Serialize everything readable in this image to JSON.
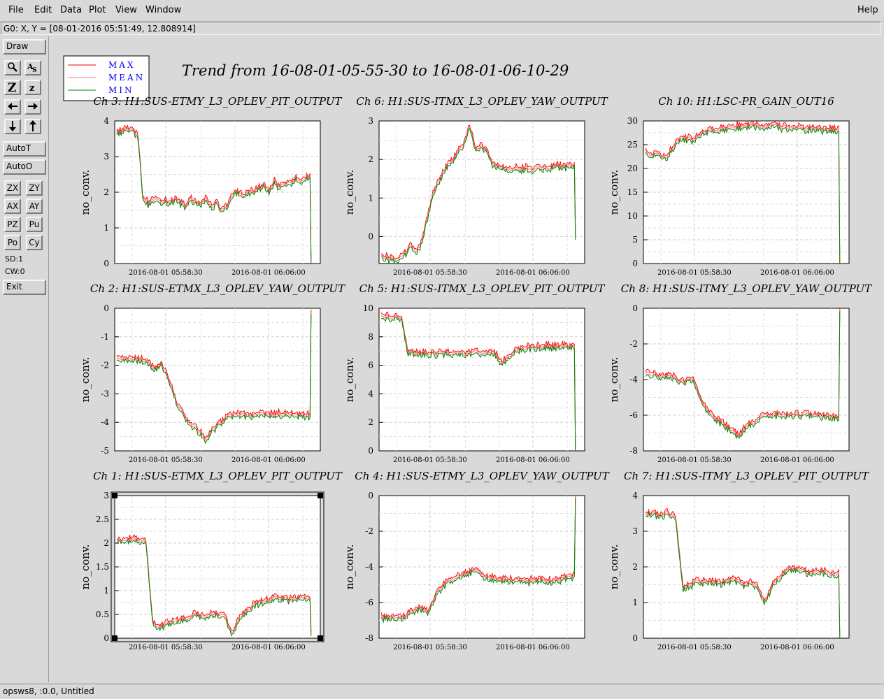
{
  "menu": {
    "file": "File",
    "edit": "Edit",
    "data": "Data",
    "plot": "Plot",
    "view": "View",
    "window": "Window",
    "help": "Help"
  },
  "coord_readout": "G0: X, Y = [08-01-2016 05:51:49, 12.808914]",
  "toolbar": {
    "draw": "Draw",
    "autot": "AutoT",
    "autoo": "AutoO",
    "zx": "ZX",
    "zy": "ZY",
    "ax": "AX",
    "ay": "AY",
    "pz": "PZ",
    "pu": "Pu",
    "po": "Po",
    "cy": "Cy",
    "sd": "SD:1",
    "cw": "CW:0",
    "exit": "Exit"
  },
  "status": "opsws8, :0.0, Untitled",
  "colors": {
    "max": "#ff0000",
    "mean": "#f08080",
    "min": "#008000",
    "legend_text": "#0000ff"
  },
  "legend": {
    "max": "MAX",
    "mean": "MEAN",
    "min": "MIN"
  },
  "chart_data": {
    "type": "line",
    "title": "Trend from 16-08-01-05-55-30 to 16-08-01-06-10-29",
    "x_tick_labels": [
      "2016-08-01 05:58:30",
      "2016-08-01 06:06:00"
    ],
    "ylabel": "no_conv.",
    "panels": [
      {
        "title": "Ch 3: H1:SUS-ETMY_L3_OPLEV_PIT_OUTPUT",
        "ylim": [
          0,
          4
        ],
        "yticks": [
          "0",
          "1",
          "2",
          "3",
          "4"
        ],
        "series_trend": [
          3.7,
          3.7,
          3.8,
          3.7,
          3.6,
          1.8,
          1.7,
          1.8,
          1.7,
          1.8,
          1.7,
          1.8,
          1.7,
          1.6,
          1.8,
          1.7,
          1.7,
          1.8,
          1.6,
          1.7,
          1.5,
          1.6,
          1.9,
          2.0,
          1.9,
          2.0,
          2.0,
          2.1,
          2.2,
          2.0,
          2.3,
          2.1,
          2.3,
          2.2,
          2.4,
          2.3,
          2.4,
          0.1
        ]
      },
      {
        "title": "Ch 6: H1:SUS-ITMX_L3_OPLEV_YAW_OUTPUT",
        "ylim": [
          -0.7,
          3
        ],
        "yticks": [
          "0",
          "1",
          "2",
          "3"
        ],
        "series_trend": [
          -0.5,
          -0.55,
          -0.6,
          -0.55,
          -0.45,
          -0.25,
          -0.45,
          -0.1,
          0.6,
          1.2,
          1.5,
          1.8,
          1.95,
          2.2,
          2.4,
          2.85,
          2.3,
          2.35,
          2.2,
          1.85,
          1.8,
          1.8,
          1.75,
          1.8,
          1.75,
          1.8,
          1.7,
          1.8,
          1.75,
          1.8,
          1.85,
          1.8,
          1.85,
          0.0
        ]
      },
      {
        "title": "Ch 10: H1:LSC-PR_GAIN_OUT16",
        "ylim": [
          0,
          30
        ],
        "yticks": [
          "0",
          "5",
          "10",
          "15",
          "20",
          "25",
          "30"
        ],
        "series_trend": [
          23.3,
          23.0,
          22.7,
          22.5,
          24.5,
          26.0,
          26.3,
          26.0,
          27.2,
          27.8,
          28.2,
          28.3,
          28.5,
          28.8,
          28.9,
          29.0,
          29.1,
          29.0,
          28.9,
          28.8,
          28.7,
          28.6,
          28.5,
          28.4,
          28.3,
          28.3,
          28.2,
          28.2,
          0.0
        ]
      },
      {
        "title": "Ch 2: H1:SUS-ETMX_L3_OPLEV_YAW_OUTPUT",
        "ylim": [
          -5,
          0
        ],
        "yticks": [
          "-5",
          "-4",
          "-3",
          "-2",
          "-1",
          "0"
        ],
        "series_trend": [
          -1.75,
          -1.75,
          -1.78,
          -1.75,
          -1.9,
          -2.1,
          -1.95,
          -2.5,
          -3.3,
          -3.8,
          -4.1,
          -4.3,
          -4.6,
          -4.2,
          -4.0,
          -3.75,
          -3.75,
          -3.72,
          -3.75,
          -3.7,
          -3.72,
          -3.75,
          -3.7,
          -3.72,
          -3.75,
          -3.76,
          -0.1
        ]
      },
      {
        "title": "Ch 5: H1:SUS-ITMX_L3_OPLEV_PIT_OUTPUT",
        "ylim": [
          0,
          10
        ],
        "yticks": [
          "0",
          "2",
          "4",
          "6",
          "8",
          "10"
        ],
        "series_trend": [
          9.4,
          9.4,
          9.35,
          9.4,
          6.9,
          6.9,
          6.85,
          6.9,
          6.8,
          6.85,
          6.9,
          6.8,
          6.75,
          6.8,
          6.9,
          6.8,
          6.85,
          6.8,
          6.2,
          6.6,
          7.0,
          7.2,
          7.3,
          7.25,
          7.3,
          7.35,
          7.3,
          7.3,
          7.35,
          0.0
        ]
      },
      {
        "title": "Ch 8: H1:SUS-ITMY_L3_OPLEV_YAW_OUTPUT",
        "ylim": [
          -8,
          0
        ],
        "yticks": [
          "-8",
          "-6",
          "-4",
          "-2",
          "0"
        ],
        "series_trend": [
          -3.6,
          -3.7,
          -3.8,
          -3.7,
          -4.0,
          -4.1,
          -3.9,
          -4.9,
          -5.8,
          -6.2,
          -6.5,
          -6.8,
          -7.2,
          -6.6,
          -6.4,
          -6.05,
          -6.0,
          -5.95,
          -6.0,
          -5.95,
          -6.0,
          -5.95,
          -6.0,
          -6.05,
          -6.1,
          -0.05
        ]
      },
      {
        "title": "Ch 1: H1:SUS-ETMX_L3_OPLEV_PIT_OUTPUT",
        "ylim": [
          0,
          3
        ],
        "yticks": [
          "0",
          "0.5",
          "1",
          "1.5",
          "2",
          "2.5",
          "3"
        ],
        "series_trend": [
          2.05,
          2.05,
          2.1,
          2.05,
          2.1,
          0.3,
          0.25,
          0.3,
          0.35,
          0.4,
          0.45,
          0.5,
          0.45,
          0.5,
          0.5,
          0.45,
          0.1,
          0.4,
          0.55,
          0.7,
          0.75,
          0.8,
          0.85,
          0.85,
          0.8,
          0.85,
          0.85,
          0.1
        ]
      },
      {
        "title": "Ch 4: H1:SUS-ETMY_L3_OPLEV_YAW_OUTPUT",
        "ylim": [
          -8,
          0
        ],
        "yticks": [
          "-8",
          "-6",
          "-4",
          "-2",
          "0"
        ],
        "series_trend": [
          -6.8,
          -6.8,
          -6.9,
          -6.8,
          -6.5,
          -6.3,
          -6.5,
          -5.6,
          -5.0,
          -4.7,
          -4.6,
          -4.4,
          -4.1,
          -4.5,
          -4.6,
          -4.8,
          -4.7,
          -4.8,
          -4.75,
          -4.8,
          -4.7,
          -4.75,
          -4.8,
          -4.7,
          -4.6,
          -0.05
        ]
      },
      {
        "title": "Ch 7: H1:SUS-ITMY_L3_OPLEV_PIT_OUTPUT",
        "ylim": [
          0,
          4
        ],
        "yticks": [
          "0",
          "1",
          "2",
          "3",
          "4"
        ],
        "series_trend": [
          3.5,
          3.5,
          3.45,
          3.5,
          3.4,
          1.4,
          1.5,
          1.6,
          1.55,
          1.6,
          1.55,
          1.6,
          1.65,
          1.5,
          1.55,
          1.45,
          1.0,
          1.5,
          1.7,
          1.9,
          1.95,
          1.9,
          1.85,
          1.9,
          1.85,
          1.8,
          0.0
        ]
      }
    ]
  }
}
